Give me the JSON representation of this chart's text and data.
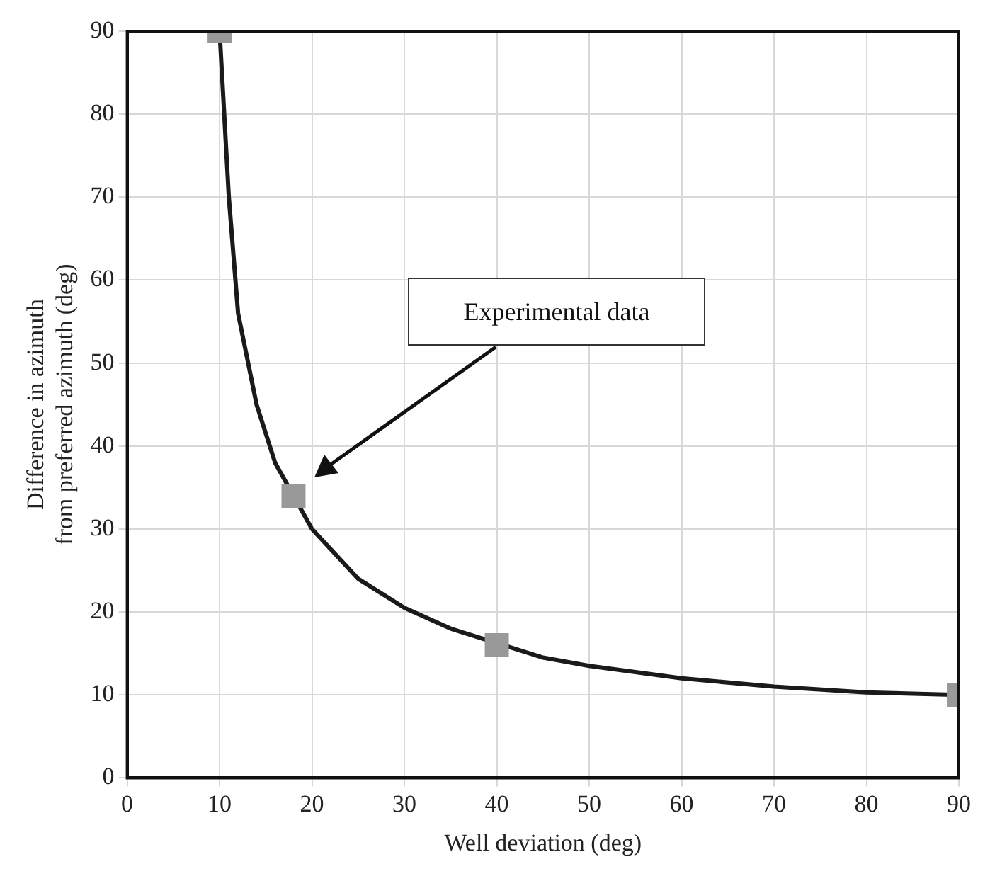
{
  "chart_data": {
    "type": "scatter",
    "xlabel": "Well deviation (deg)",
    "ylabel": "Difference in azimuth\nfrom preferred azimuth (deg)",
    "xlim": [
      0,
      90
    ],
    "ylim": [
      0,
      90
    ],
    "xticks": [
      0,
      10,
      20,
      30,
      40,
      50,
      60,
      70,
      80,
      90
    ],
    "yticks": [
      0,
      10,
      20,
      30,
      40,
      50,
      60,
      70,
      80,
      90
    ],
    "grid": true,
    "legend": false,
    "annotations": [
      "Experimental data"
    ],
    "series": [
      {
        "type": "line",
        "color": "#1a1a1a",
        "marker": "none",
        "line_style": "solid",
        "x": [
          10,
          11,
          12,
          14,
          16,
          20,
          25,
          30,
          35,
          45,
          50,
          60,
          70,
          80,
          90
        ],
        "values": [
          90,
          70,
          56,
          45,
          38,
          30,
          24,
          20.5,
          18,
          14.5,
          13.5,
          12,
          11,
          10.3,
          10
        ]
      },
      {
        "color": "#999999",
        "marker": "square",
        "x": [
          10,
          18,
          40,
          90
        ],
        "values": [
          90,
          34,
          16,
          10
        ]
      }
    ]
  }
}
